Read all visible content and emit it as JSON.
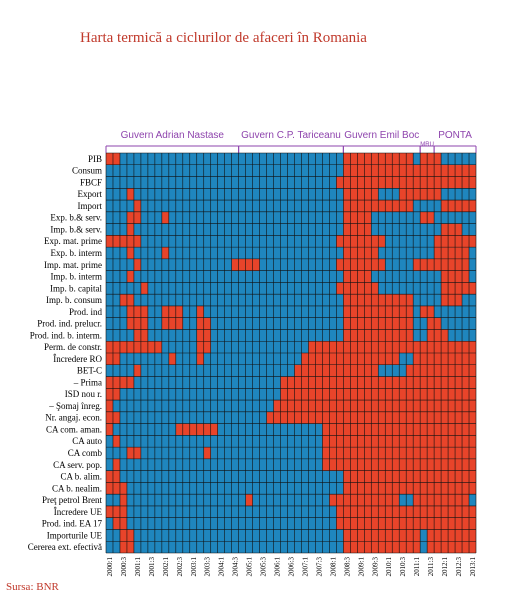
{
  "chart_data": {
    "type": "heatmap",
    "title": "Harta termică a ciclurilor de afaceri în Romania",
    "source": "Sursa: BNR",
    "colors": {
      "above": "#e8442a",
      "below": "#1f86be",
      "grid": "#111111",
      "gov": "#8e44ad"
    },
    "rows": [
      "PIB",
      "Consum",
      "FBCF",
      "Export",
      "Import",
      "Exp. b.& serv.",
      "Imp. b.& serv.",
      "Exp. mat. prime",
      "Exp. b. interm",
      "Imp. mat. prime",
      "Imp. b. interm",
      "Imp. b. capital",
      "Imp. b. consum",
      "Prod. ind",
      "Prod. ind. prelucr.",
      "Prod. ind. b. interm.",
      "Perm. de constr.",
      "Încredere RO",
      "BET-C",
      "– Prima",
      "ISD nou r.",
      "– Şomaj înreg.",
      "Nr. angaj. econ.",
      "CA com. aman.",
      "CA auto",
      "CA comb",
      "CA serv. pop.",
      "CA b. alim.",
      "CA b. nealim.",
      "Preţ petrol Brent",
      "Încredere UE",
      "Prod. ind. EA 17",
      "Importurile UE",
      "Cererea ext. efectivă"
    ],
    "x_ticks": [
      "2000:1",
      "2000:3",
      "2001:1",
      "2001:3",
      "2002:1",
      "2002:3",
      "2003:1",
      "2003:3",
      "2004:1",
      "2004:3",
      "2005:1",
      "2005:3",
      "2006:1",
      "2006:3",
      "2007:1",
      "2007:3",
      "2008:1",
      "2008:3",
      "2009:1",
      "2009:3",
      "2010:1",
      "2010:3",
      "2011:1",
      "2011:3",
      "2012:1",
      "2012:3",
      "2013:1"
    ],
    "governments": [
      {
        "name": "Guvern Adrian Nastase",
        "from": 0,
        "to": 19
      },
      {
        "name": "Guvern C.P. Tariceanu",
        "from": 19,
        "to": 34
      },
      {
        "name": "Guvern Emil Boc",
        "from": 34,
        "to": 45
      },
      {
        "name": "MRU",
        "from": 45,
        "to": 47
      },
      {
        "name": "PONTA",
        "from": 47,
        "to": 53
      }
    ],
    "red_runs": [
      [
        [
          0,
          2
        ],
        [
          34,
          44
        ],
        [
          45,
          47
        ],
        [
          47,
          48
        ]
      ],
      [
        [
          34,
          52
        ],
        [
          50,
          53
        ]
      ],
      [
        [
          33,
          53
        ]
      ],
      [
        [
          3,
          4
        ],
        [
          34,
          39
        ],
        [
          42,
          48
        ]
      ],
      [
        [
          4,
          5
        ],
        [
          34,
          44
        ],
        [
          48,
          53
        ]
      ],
      [
        [
          3,
          5
        ],
        [
          8,
          9
        ],
        [
          34,
          38
        ],
        [
          45,
          47
        ]
      ],
      [
        [
          3,
          4
        ],
        [
          34,
          38
        ],
        [
          48,
          51
        ]
      ],
      [
        [
          0,
          5
        ],
        [
          33,
          40
        ],
        [
          47,
          53
        ]
      ],
      [
        [
          3,
          4
        ],
        [
          8,
          9
        ],
        [
          34,
          39
        ],
        [
          47,
          52
        ]
      ],
      [
        [
          4,
          5
        ],
        [
          18,
          22
        ],
        [
          33,
          40
        ],
        [
          44,
          52
        ]
      ],
      [
        [
          3,
          4
        ],
        [
          34,
          38
        ],
        [
          48,
          52
        ]
      ],
      [
        [
          5,
          6
        ],
        [
          33,
          39
        ],
        [
          48,
          53
        ]
      ],
      [
        [
          2,
          4
        ],
        [
          34,
          44
        ],
        [
          48,
          51
        ]
      ],
      [
        [
          3,
          6
        ],
        [
          8,
          11
        ],
        [
          13,
          14
        ],
        [
          34,
          44
        ],
        [
          45,
          47
        ]
      ],
      [
        [
          3,
          6
        ],
        [
          8,
          11
        ],
        [
          13,
          15
        ],
        [
          34,
          44
        ],
        [
          46,
          48
        ]
      ],
      [
        [
          4,
          6
        ],
        [
          13,
          15
        ],
        [
          34,
          44
        ],
        [
          46,
          49
        ]
      ],
      [
        [
          0,
          8
        ],
        [
          13,
          15
        ],
        [
          29,
          53
        ]
      ],
      [
        [
          0,
          2
        ],
        [
          9,
          10
        ],
        [
          13,
          14
        ],
        [
          28,
          42
        ],
        [
          44,
          53
        ]
      ],
      [
        [
          4,
          5
        ],
        [
          27,
          39
        ],
        [
          43,
          53
        ]
      ],
      [
        [
          0,
          4
        ],
        [
          25,
          53
        ]
      ],
      [
        [
          0,
          2
        ],
        [
          25,
          53
        ]
      ],
      [
        [
          0,
          1
        ],
        [
          24,
          53
        ]
      ],
      [
        [
          0,
          2
        ],
        [
          23,
          53
        ]
      ],
      [
        [
          0,
          1
        ],
        [
          10,
          16
        ],
        [
          31,
          53
        ]
      ],
      [
        [
          1,
          2
        ],
        [
          31,
          53
        ]
      ],
      [
        [
          3,
          5
        ],
        [
          14,
          15
        ],
        [
          31,
          53
        ]
      ],
      [
        [
          1,
          2
        ],
        [
          31,
          53
        ]
      ],
      [
        [
          0,
          2
        ],
        [
          34,
          53
        ]
      ],
      [
        [
          0,
          3
        ],
        [
          34,
          53
        ]
      ],
      [
        [
          2,
          3
        ],
        [
          20,
          21
        ],
        [
          32,
          42
        ],
        [
          44,
          52
        ]
      ],
      [
        [
          0,
          3
        ],
        [
          33,
          53
        ]
      ],
      [
        [
          1,
          3
        ],
        [
          33,
          53
        ]
      ],
      [
        [
          2,
          4
        ],
        [
          34,
          45
        ],
        [
          46,
          53
        ]
      ],
      [
        [
          2,
          4
        ],
        [
          34,
          45
        ],
        [
          46,
          53
        ]
      ]
    ]
  }
}
